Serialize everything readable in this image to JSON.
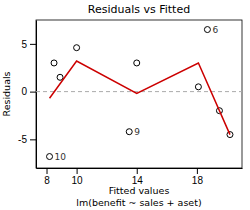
{
  "chart_data": {
    "type": "scatter",
    "title": "Residuals vs Fitted",
    "xlabel": [
      "Fitted values",
      "lm(benefit ~ sales + aset)"
    ],
    "ylabel": "Residuals",
    "series": [
      {
        "type": "scatter",
        "color": "black",
        "marker": "circle",
        "x": [
          8.2,
          8.5,
          8.9,
          10.0,
          14.0,
          13.5,
          18.7,
          18.1,
          19.5,
          20.2
        ],
        "values": [
          -6.8,
          3.0,
          1.5,
          4.6,
          3.0,
          -4.2,
          6.5,
          0.5,
          -2.0,
          -4.5
        ],
        "labels": [
          "10",
          null,
          null,
          null,
          null,
          "9",
          "6",
          null,
          null,
          null
        ]
      },
      {
        "type": "line",
        "color": "#cc0000",
        "x": [
          8.2,
          10.0,
          14.0,
          18.1,
          20.2
        ],
        "values": [
          -0.7,
          3.2,
          -0.2,
          3.0,
          -4.5
        ]
      }
    ],
    "hline": {
      "y": 0,
      "color": "#aaaaaa",
      "line_style": "dashed"
    },
    "xlim": [
      7.3,
      21.0
    ],
    "ylim": [
      -8.0,
      7.5
    ],
    "xticks": [
      8,
      10,
      14,
      18
    ],
    "yticks": [
      -5,
      0,
      5
    ]
  }
}
